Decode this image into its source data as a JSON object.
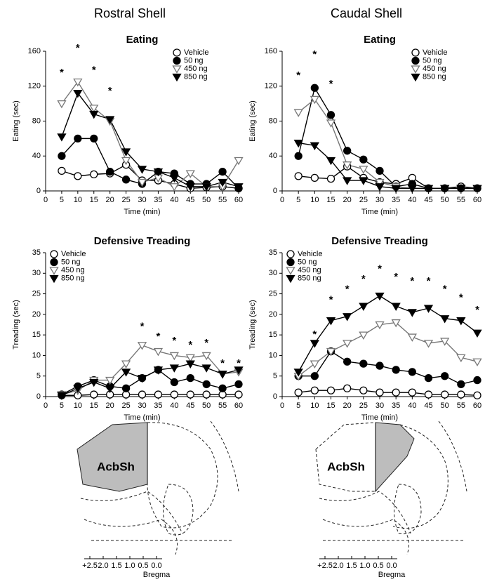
{
  "headers": [
    "Rostral Shell",
    "Caudal Shell"
  ],
  "chart_data": [
    {
      "type": "line",
      "title": "Eating",
      "xlabel": "Time (min)",
      "ylabel": "Eating (sec)",
      "x": [
        5,
        10,
        15,
        20,
        25,
        30,
        35,
        40,
        45,
        50,
        55,
        60
      ],
      "xlim": [
        0,
        60
      ],
      "xticks": [
        0,
        5,
        10,
        15,
        20,
        25,
        30,
        35,
        40,
        45,
        50,
        55,
        60
      ],
      "ylim": [
        0,
        160
      ],
      "yticks": [
        0,
        40,
        80,
        120,
        160
      ],
      "legend": "upper right",
      "series": [
        {
          "name": "Vehicle",
          "color": "#000000",
          "marker": "open-circle",
          "values": [
            23,
            17,
            19,
            20,
            30,
            12,
            12,
            8,
            3,
            4,
            5,
            3
          ]
        },
        {
          "name": "50 ng",
          "color": "#000000",
          "marker": "filled-circle",
          "values": [
            40,
            60,
            60,
            22,
            13,
            8,
            22,
            20,
            8,
            8,
            22,
            3
          ]
        },
        {
          "name": "450 ng",
          "color": "#777777",
          "marker": "open-triangle",
          "values": [
            100,
            125,
            95,
            80,
            35,
            10,
            15,
            5,
            20,
            5,
            5,
            35
          ]
        },
        {
          "name": "850 ng",
          "color": "#000000",
          "marker": "filled-triangle",
          "values": [
            62,
            112,
            88,
            82,
            45,
            25,
            22,
            15,
            5,
            5,
            10,
            5
          ]
        }
      ],
      "annotations": [
        {
          "text": "*",
          "x": 5,
          "y": 135
        },
        {
          "text": "*",
          "x": 10,
          "y": 163
        },
        {
          "text": "*",
          "x": 15,
          "y": 138
        },
        {
          "text": "*",
          "x": 20,
          "y": 114
        }
      ]
    },
    {
      "type": "line",
      "title": "Eating",
      "xlabel": "Time (min)",
      "ylabel": "Eating (sec)",
      "x": [
        5,
        10,
        15,
        20,
        25,
        30,
        35,
        40,
        45,
        50,
        55,
        60
      ],
      "xlim": [
        0,
        60
      ],
      "xticks": [
        0,
        5,
        10,
        15,
        20,
        25,
        30,
        35,
        40,
        45,
        50,
        55,
        60
      ],
      "ylim": [
        0,
        160
      ],
      "yticks": [
        0,
        40,
        80,
        120,
        160
      ],
      "legend": "upper right",
      "series": [
        {
          "name": "Vehicle",
          "color": "#000000",
          "marker": "open-circle",
          "values": [
            17,
            15,
            14,
            28,
            15,
            10,
            8,
            15,
            3,
            3,
            5,
            3
          ]
        },
        {
          "name": "50 ng",
          "color": "#000000",
          "marker": "filled-circle",
          "values": [
            40,
            118,
            87,
            46,
            36,
            23,
            5,
            8,
            3,
            3,
            3,
            3
          ]
        },
        {
          "name": "450 ng",
          "color": "#777777",
          "marker": "open-triangle",
          "values": [
            90,
            105,
            78,
            30,
            25,
            10,
            5,
            3,
            3,
            3,
            3,
            3
          ]
        },
        {
          "name": "850 ng",
          "color": "#000000",
          "marker": "filled-triangle",
          "values": [
            55,
            52,
            35,
            12,
            12,
            5,
            3,
            3,
            3,
            3,
            3,
            3
          ]
        }
      ],
      "annotations": [
        {
          "text": "*",
          "x": 5,
          "y": 132
        },
        {
          "text": "*",
          "x": 10,
          "y": 156
        },
        {
          "text": "*",
          "x": 15,
          "y": 122
        }
      ]
    },
    {
      "type": "line",
      "title": "Defensive Treading",
      "xlabel": "Time (min)",
      "ylabel": "Treading (sec)",
      "x": [
        5,
        10,
        15,
        20,
        25,
        30,
        35,
        40,
        45,
        50,
        55,
        60
      ],
      "xlim": [
        0,
        60
      ],
      "xticks": [
        0,
        5,
        10,
        15,
        20,
        25,
        30,
        35,
        40,
        45,
        50,
        55,
        60
      ],
      "ylim": [
        0,
        35
      ],
      "yticks": [
        0,
        5,
        10,
        15,
        20,
        25,
        30,
        35
      ],
      "legend": "upper left",
      "series": [
        {
          "name": "Vehicle",
          "color": "#000000",
          "marker": "open-circle",
          "values": [
            0.3,
            0.3,
            0.5,
            0.5,
            0.5,
            0.5,
            0.5,
            0.5,
            0.5,
            0.5,
            0.5,
            0.5
          ]
        },
        {
          "name": "50 ng",
          "color": "#000000",
          "marker": "filled-circle",
          "values": [
            0.5,
            2.5,
            4,
            2.5,
            2,
            4.5,
            6.5,
            3.5,
            4.5,
            3,
            2,
            3
          ]
        },
        {
          "name": "450 ng",
          "color": "#777777",
          "marker": "open-triangle",
          "values": [
            0.5,
            1.5,
            4,
            4,
            8,
            12.5,
            11,
            10,
            9.5,
            10,
            5.5,
            6
          ]
        },
        {
          "name": "850 ng",
          "color": "#000000",
          "marker": "filled-triangle",
          "values": [
            0.3,
            2,
            3.5,
            2,
            6,
            4.5,
            6.5,
            7,
            8,
            7,
            5.5,
            6.5
          ]
        }
      ],
      "annotations": [
        {
          "text": "*",
          "x": 30,
          "y": 17
        },
        {
          "text": "*",
          "x": 35,
          "y": 14.5
        },
        {
          "text": "*",
          "x": 40,
          "y": 13.5
        },
        {
          "text": "*",
          "x": 45,
          "y": 12.5
        },
        {
          "text": "*",
          "x": 50,
          "y": 13
        },
        {
          "text": "*",
          "x": 55,
          "y": 8
        },
        {
          "text": "*",
          "x": 60,
          "y": 8
        }
      ]
    },
    {
      "type": "line",
      "title": "Defensive Treading",
      "xlabel": "Time (min)",
      "ylabel": "Treading (sec)",
      "x": [
        5,
        10,
        15,
        20,
        25,
        30,
        35,
        40,
        45,
        50,
        55,
        60
      ],
      "xlim": [
        0,
        60
      ],
      "xticks": [
        0,
        5,
        10,
        15,
        20,
        25,
        30,
        35,
        40,
        45,
        50,
        55,
        60
      ],
      "ylim": [
        0,
        35
      ],
      "yticks": [
        0,
        5,
        10,
        15,
        20,
        25,
        30,
        35
      ],
      "legend": "upper left",
      "series": [
        {
          "name": "Vehicle",
          "color": "#000000",
          "marker": "open-circle",
          "values": [
            1,
            1.5,
            1.5,
            2,
            1.5,
            1,
            1,
            1,
            0.5,
            0.5,
            0.5,
            0.3
          ]
        },
        {
          "name": "50 ng",
          "color": "#000000",
          "marker": "filled-circle",
          "values": [
            5,
            5,
            11,
            8.5,
            8,
            7.5,
            6.5,
            6,
            4.5,
            5,
            3,
            4
          ]
        },
        {
          "name": "450 ng",
          "color": "#777777",
          "marker": "open-triangle",
          "values": [
            5,
            8,
            11,
            13,
            15,
            17.5,
            18,
            14.5,
            13,
            13.5,
            9.5,
            8.5
          ]
        },
        {
          "name": "850 ng",
          "color": "#000000",
          "marker": "filled-triangle",
          "values": [
            6,
            13,
            18.5,
            19.5,
            22,
            24.5,
            22,
            20.5,
            21.5,
            19,
            18.5,
            15.5
          ]
        }
      ],
      "annotations": [
        {
          "text": "*",
          "x": 10,
          "y": 15
        },
        {
          "text": "*",
          "x": 15,
          "y": 23.5
        },
        {
          "text": "*",
          "x": 20,
          "y": 26
        },
        {
          "text": "*",
          "x": 25,
          "y": 28.5
        },
        {
          "text": "*",
          "x": 30,
          "y": 31
        },
        {
          "text": "*",
          "x": 35,
          "y": 29
        },
        {
          "text": "*",
          "x": 40,
          "y": 28
        },
        {
          "text": "*",
          "x": 45,
          "y": 28
        },
        {
          "text": "*",
          "x": 50,
          "y": 26
        },
        {
          "text": "*",
          "x": 55,
          "y": 24
        },
        {
          "text": "*",
          "x": 60,
          "y": 21
        }
      ]
    }
  ],
  "diagrams": [
    {
      "label": "AcbSh",
      "scale": [
        "+2.5",
        "2.0",
        "1.5",
        "1.0",
        "0.5",
        "0.0"
      ],
      "reference": "Bregma"
    },
    {
      "label": "AcbSh",
      "scale": [
        "+2.5",
        "2.0",
        "1.5",
        "1.0",
        "0.5",
        "0.0"
      ],
      "reference": "Bregma"
    }
  ]
}
